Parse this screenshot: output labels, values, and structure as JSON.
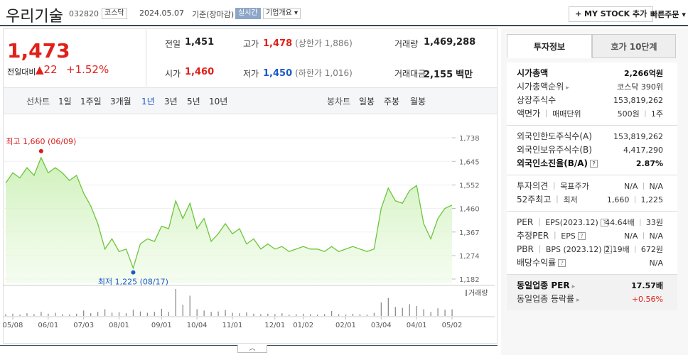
{
  "header": {
    "name": "우리기술",
    "code": "032820",
    "market": "코스닥",
    "date": "2024.05.07",
    "basis": "기준(장마감)",
    "realtime": "실시간",
    "overview": "기업개요",
    "mystock": "MY STOCK 추가",
    "quick_order": "빠른주문"
  },
  "quote": {
    "price": "1,473",
    "change_label": "전일대비",
    "change": "22",
    "change_pct": "+1.52%",
    "cells": [
      {
        "label": "전일",
        "value": "1,451",
        "color": "#222"
      },
      {
        "label": "고가",
        "value": "1,478",
        "color": "#e0201a",
        "note": "(상한가 1,886)"
      },
      {
        "label": "거래량",
        "value": "1,469,288",
        "color": "#222"
      },
      {
        "label": "시가",
        "value": "1,460",
        "color": "#e0201a"
      },
      {
        "label": "저가",
        "value": "1,450",
        "color": "#1a5ac9",
        "note": "(하한가 1,016)"
      },
      {
        "label": "거래대금",
        "value": "2,155",
        "color": "#222",
        "unit": "백만"
      }
    ]
  },
  "tabs": {
    "line_label": "선차트",
    "line": [
      "1일",
      "1주일",
      "3개월",
      "1년",
      "3년",
      "5년",
      "10년"
    ],
    "selected": 3,
    "candle_label": "봉차트",
    "candle": [
      "일봉",
      "주봉",
      "월봉"
    ]
  },
  "chart_data": {
    "type": "line",
    "categories": [
      null,
      "05/08",
      null,
      null,
      null,
      null,
      "06/01",
      null,
      null,
      null,
      null,
      "07/03",
      null,
      null,
      null,
      null,
      "08/01",
      null,
      null,
      null,
      null,
      null,
      "09/01",
      null,
      null,
      null,
      null,
      "10/04",
      null,
      null,
      null,
      null,
      "11/01",
      null,
      null,
      null,
      null,
      null,
      "12/01",
      null,
      null,
      null,
      "01/02",
      null,
      null,
      null,
      null,
      null,
      "02/01",
      null,
      null,
      null,
      null,
      "03/04",
      null,
      null,
      null,
      null,
      "04/01",
      null,
      null,
      null,
      null,
      "05/02"
    ],
    "series": [
      {
        "color": "#6cc53c",
        "values": [
          1560,
          1600,
          1580,
          1620,
          1590,
          1660,
          1600,
          1620,
          1600,
          1570,
          1590,
          1520,
          1470,
          1400,
          1300,
          1340,
          1290,
          1300,
          1225,
          1320,
          1340,
          1330,
          1390,
          1380,
          1490,
          1420,
          1480,
          1380,
          1420,
          1330,
          1360,
          1400,
          1360,
          1380,
          1320,
          1340,
          1300,
          1320,
          1300,
          1310,
          1290,
          1300,
          1310,
          1300,
          1300,
          1290,
          1310,
          1290,
          1300,
          1310,
          1300,
          1290,
          1300,
          1460,
          1540,
          1490,
          1480,
          1530,
          1550,
          1400,
          1340,
          1420,
          1460,
          1473
        ]
      }
    ],
    "volume": {
      "name": "거래량",
      "color": "#8c8c8c",
      "values": [
        400000,
        500000,
        300000,
        600000,
        400000,
        900000,
        500000,
        700000,
        400000,
        300000,
        500000,
        1200000,
        600000,
        900000,
        1500000,
        700000,
        800000,
        600000,
        1400000,
        1000000,
        700000,
        900000,
        1600000,
        900000,
        6000000,
        2500000,
        4500000,
        1500000,
        1200000,
        900000,
        1000000,
        1300000,
        700000,
        600000,
        800000,
        500000,
        400000,
        500000,
        400000,
        600000,
        300000,
        400000,
        500000,
        400000,
        300000,
        400000,
        1100000,
        400000,
        300000,
        500000,
        400000,
        300000,
        700000,
        3000000,
        4000000,
        2000000,
        1800000,
        2600000,
        2200000,
        1500000,
        900000,
        1700000,
        1400000,
        1469288
      ]
    },
    "ylim": [
      1182,
      1738
    ],
    "yticks": [
      {
        "value": 1182,
        "label": "1,182"
      },
      {
        "value": 1274,
        "label": "1,274"
      },
      {
        "value": 1367,
        "label": "1,367"
      },
      {
        "value": 1460,
        "label": "1,460"
      },
      {
        "value": 1552,
        "label": "1,552"
      },
      {
        "value": 1645,
        "label": "1,645"
      },
      {
        "value": 1738,
        "label": "1,738"
      }
    ],
    "annotations": [
      {
        "text": "최고 1,660 (06/09)",
        "color": "#d61a1a"
      },
      {
        "text": "최저 1,225 (08/17)",
        "color": "#1a5ac9"
      }
    ],
    "grid": true
  },
  "info_tabs": [
    "투자정보",
    "호가 10단계"
  ],
  "info": [
    [
      {
        "label": [
          "시가총액"
        ],
        "value": [
          "2,266억원"
        ],
        "bold": true
      },
      {
        "label": [
          "시가총액순위"
        ],
        "link": true,
        "value": [
          "코스닥 390위"
        ]
      },
      {
        "label": [
          "상장주식수"
        ],
        "value": [
          "153,819,262"
        ]
      },
      {
        "label": [
          "액면가",
          "매매단위"
        ],
        "value": [
          "500원",
          "1주"
        ]
      }
    ],
    [
      {
        "label": [
          "외국인한도주식수(A)"
        ],
        "value": [
          "153,819,262"
        ]
      },
      {
        "label": [
          "외국인보유주식수(B)"
        ],
        "value": [
          "4,417,290"
        ]
      },
      {
        "label": [
          "외국인소진율(B/A)"
        ],
        "help": true,
        "value": [
          "2.87%"
        ],
        "bold": true
      }
    ],
    [
      {
        "label": [
          "투자의견",
          "목표주가"
        ],
        "value": [
          "N/A",
          "N/A"
        ]
      },
      {
        "label": [
          "52주최고",
          "최저"
        ],
        "value": [
          "1,660",
          "1,225"
        ]
      }
    ],
    [
      {
        "label": [
          "PER",
          "EPS(2023.12)"
        ],
        "help": true,
        "value": [
          "44.64배",
          "33원"
        ]
      },
      {
        "label": [
          "추정PER",
          "EPS"
        ],
        "help": true,
        "value": [
          "N/A",
          "N/A"
        ]
      },
      {
        "label": [
          "PBR",
          "BPS (2023.12)"
        ],
        "help": true,
        "value": [
          "2.19배",
          "672원"
        ]
      },
      {
        "label": [
          "배당수익률"
        ],
        "help": true,
        "value": [
          "N/A"
        ]
      }
    ],
    [
      {
        "label": [
          "동일업종 PER"
        ],
        "link": true,
        "value": [
          "17.57배"
        ],
        "bold": true
      },
      {
        "label": [
          "동일업종 등락률"
        ],
        "link": true,
        "value": [
          "+0.56%"
        ],
        "color": "#e0201a"
      }
    ]
  ]
}
